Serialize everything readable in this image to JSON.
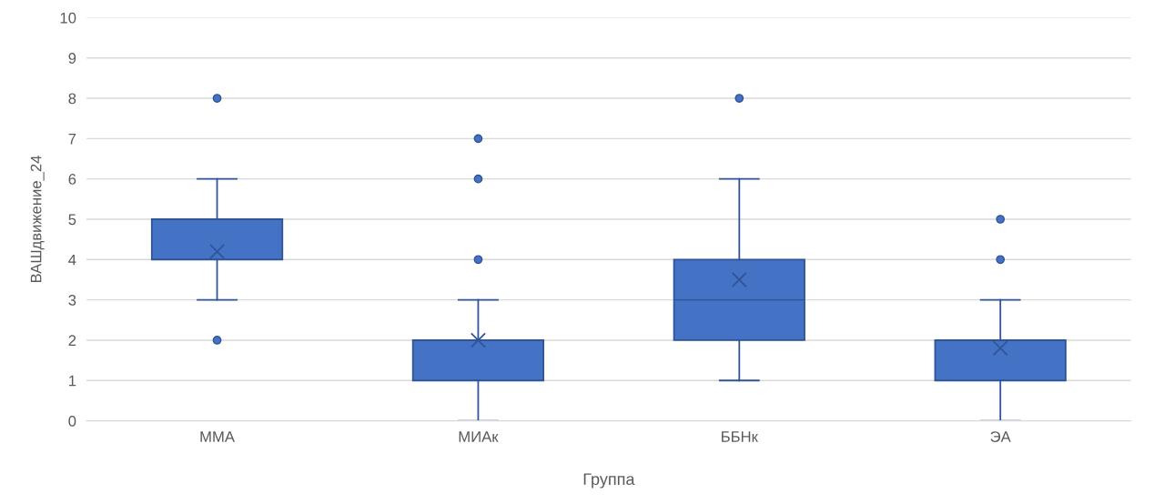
{
  "chart_data": {
    "type": "box",
    "xlabel": "Группа",
    "ylabel": "ВАШдвижение_24",
    "categories": [
      "ММА",
      "МИАк",
      "ББНк",
      "ЭА"
    ],
    "boxes": [
      {
        "low": 3,
        "q1": 4,
        "median": 4,
        "q3": 5,
        "high": 6,
        "mean": 4.2,
        "outliers": [
          8,
          2
        ]
      },
      {
        "low": 0,
        "q1": 1,
        "median": 2,
        "q3": 2,
        "high": 3,
        "mean": 2.0,
        "outliers": [
          7,
          6,
          4
        ]
      },
      {
        "low": 1,
        "q1": 2,
        "median": 3,
        "q3": 4,
        "high": 6,
        "mean": 3.5,
        "outliers": [
          8
        ]
      },
      {
        "low": 0,
        "q1": 1,
        "median": 2,
        "q3": 2,
        "high": 3,
        "mean": 1.8,
        "outliers": [
          5,
          4
        ]
      }
    ],
    "color": "#4472c4",
    "ylim": [
      0,
      10
    ],
    "yticks": [
      0,
      1,
      2,
      3,
      4,
      5,
      6,
      7,
      8,
      9,
      10
    ],
    "grid": "y",
    "marker": "circle"
  }
}
